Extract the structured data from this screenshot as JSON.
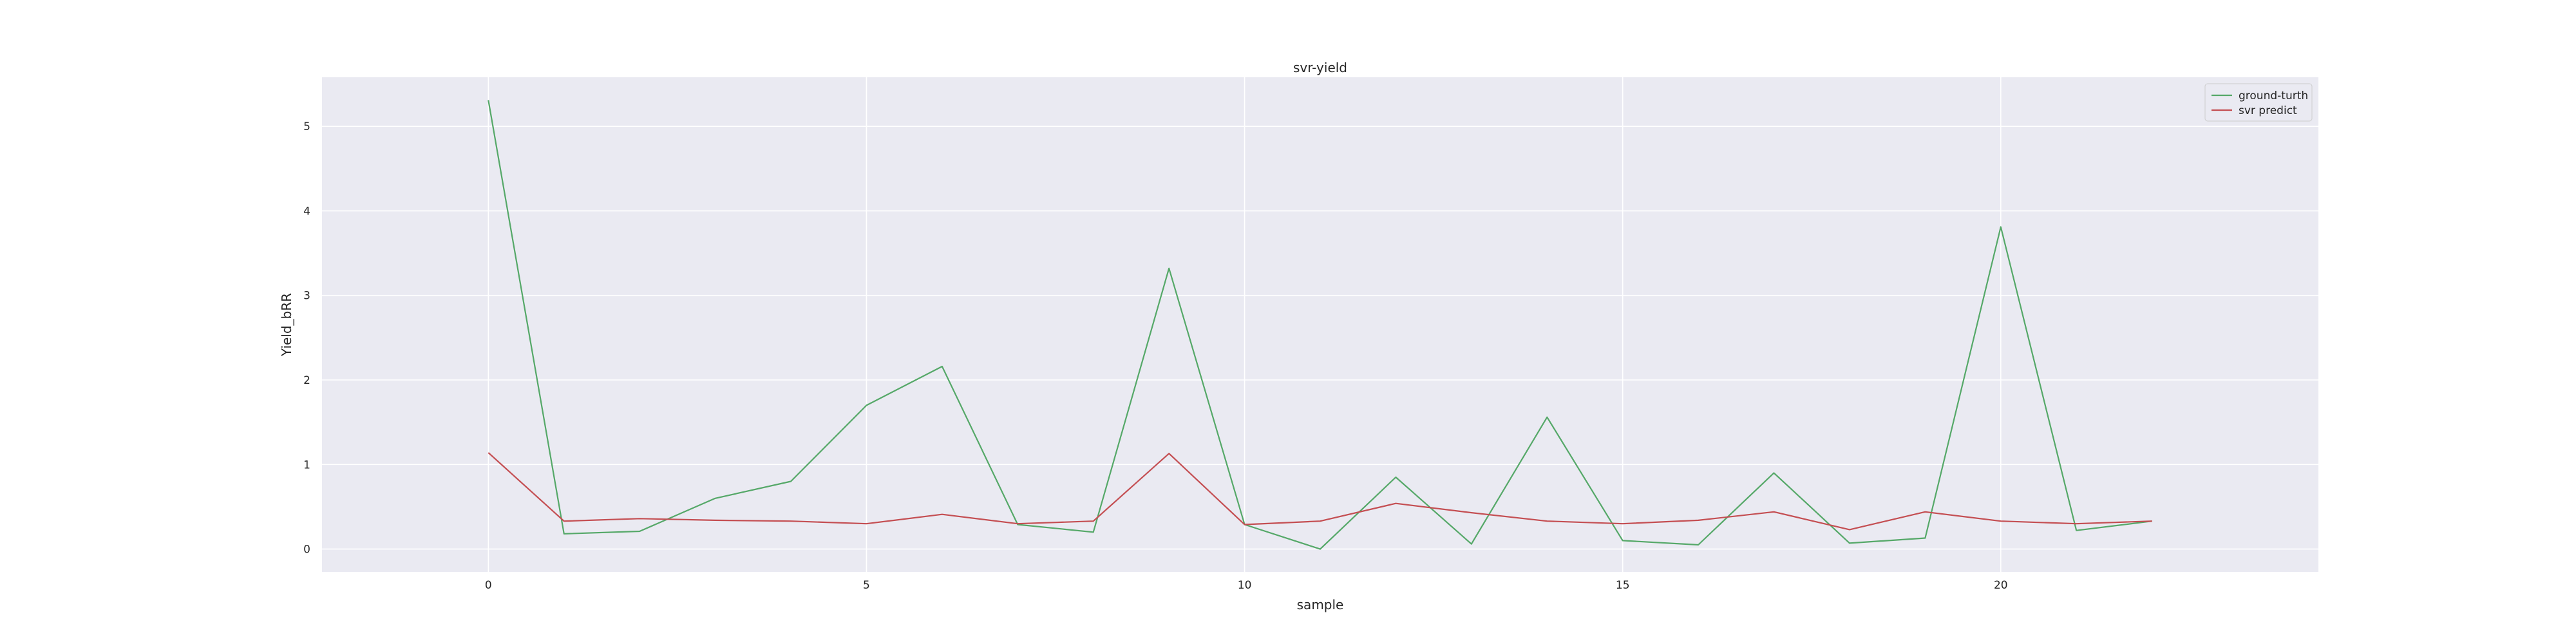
{
  "chart_data": {
    "type": "line",
    "title": "svr-yield",
    "xlabel": "sample",
    "ylabel": "Yield_bRR",
    "x": [
      0,
      1,
      2,
      3,
      4,
      5,
      6,
      7,
      8,
      9,
      10,
      11,
      12,
      13,
      14,
      15,
      16,
      17,
      18,
      19,
      20,
      21,
      22
    ],
    "xlim": [
      -2.2,
      46.2
    ],
    "ylim": [
      -0.27,
      5.58
    ],
    "xticks": [
      0,
      5,
      10,
      15,
      20
    ],
    "yticks": [
      0,
      1,
      2,
      3,
      4,
      5
    ],
    "grid": true,
    "legend": "top-right",
    "series": [
      {
        "name": "ground-turth",
        "color": "#55a868",
        "values": [
          5.31,
          0.18,
          0.21,
          0.6,
          0.8,
          1.7,
          2.16,
          0.29,
          0.2,
          3.32,
          0.29,
          0.0,
          0.85,
          0.06,
          1.56,
          0.1,
          0.05,
          0.9,
          0.07,
          0.13,
          3.81,
          0.22,
          0.33
        ]
      },
      {
        "name": "svr predict",
        "color": "#c44e52",
        "values": [
          1.14,
          0.33,
          0.36,
          0.34,
          0.33,
          0.3,
          0.41,
          0.3,
          0.33,
          1.13,
          0.29,
          0.33,
          0.54,
          0.43,
          0.33,
          0.3,
          0.34,
          0.44,
          0.23,
          0.44,
          0.33,
          0.3,
          0.33
        ]
      }
    ]
  }
}
